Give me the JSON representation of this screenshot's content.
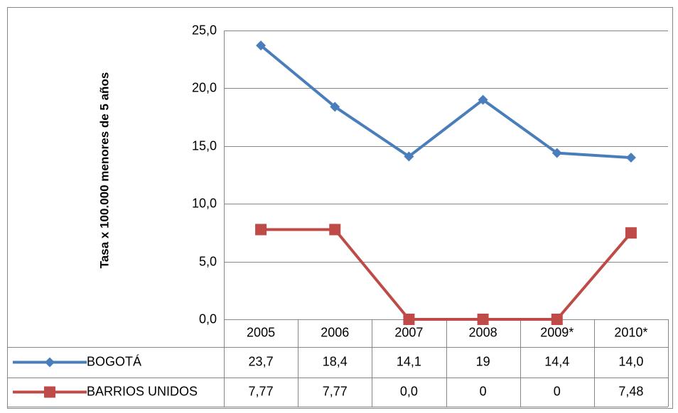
{
  "chart_data": {
    "type": "line",
    "y_label": "Tasa x 100.000 menores de 5 años",
    "categories": [
      "2005",
      "2006",
      "2007",
      "2008",
      "2009*",
      "2010*"
    ],
    "series": [
      {
        "name": "BOGOTÁ",
        "color": "#4a7ebb",
        "marker": "diamond",
        "values": [
          23.7,
          18.4,
          14.1,
          19,
          14.4,
          14.0
        ],
        "value_labels": [
          "23,7",
          "18,4",
          "14,1",
          "19",
          "14,4",
          "14,0"
        ]
      },
      {
        "name": "BARRIOS UNIDOS",
        "color": "#be4b48",
        "marker": "square",
        "values": [
          7.77,
          7.77,
          0.0,
          0,
          0,
          7.48
        ],
        "value_labels": [
          "7,77",
          "7,77",
          "0,0",
          "0",
          "0",
          "7,48"
        ]
      }
    ],
    "ylim": [
      0,
      25
    ],
    "yticks": [
      {
        "value": 0,
        "label": "0,0"
      },
      {
        "value": 5,
        "label": "5,0"
      },
      {
        "value": 10,
        "label": "10,0"
      },
      {
        "value": 15,
        "label": "15,0"
      },
      {
        "value": 20,
        "label": "20,0"
      },
      {
        "value": 25,
        "label": "25,0"
      }
    ],
    "grid": true,
    "data_table": true
  }
}
